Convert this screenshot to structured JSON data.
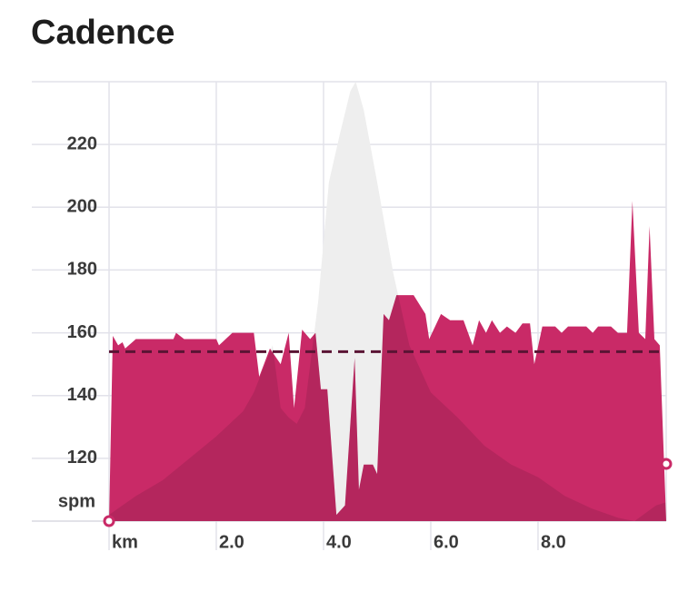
{
  "chart_data": {
    "type": "area",
    "title": "Cadence",
    "y_unit": "spm",
    "ylim": [
      100,
      240
    ],
    "yticks": [
      120,
      140,
      160,
      180,
      200,
      220
    ],
    "xlim": [
      0,
      10.39
    ],
    "xticks": [
      {
        "value": 0,
        "label": "km"
      },
      {
        "value": 2,
        "label": "2.0"
      },
      {
        "value": 4,
        "label": "4.0"
      },
      {
        "value": 6,
        "label": "6.0"
      },
      {
        "value": 8,
        "label": "8.0"
      }
    ],
    "grid": true,
    "average": 154,
    "average_color": "#5a1434",
    "series": [
      {
        "color": "#eeeeee",
        "x": [
          0,
          0.5,
          1.0,
          1.5,
          2.0,
          2.5,
          2.7,
          3.05,
          3.2,
          3.35,
          3.5,
          3.65,
          3.9,
          4.1,
          4.3,
          4.5,
          4.6,
          4.75,
          5.0,
          5.3,
          5.6,
          6.0,
          6.5,
          7.0,
          7.5,
          8.0,
          8.5,
          9.0,
          9.5,
          9.8,
          10.2,
          10.39
        ],
        "values": [
          102,
          108,
          113,
          120,
          127,
          135,
          141,
          156,
          136,
          133,
          131,
          136,
          170,
          208,
          223,
          237,
          240,
          231,
          208,
          179,
          156,
          141,
          133,
          124,
          118,
          114,
          108,
          104,
          101,
          100,
          105,
          106
        ]
      },
      {
        "color": "#c92a67",
        "x": [
          0,
          0.07,
          0.17,
          0.25,
          0.3,
          0.5,
          1.2,
          1.25,
          1.4,
          2.0,
          2.05,
          2.3,
          2.7,
          2.8,
          3.0,
          3.2,
          3.35,
          3.45,
          3.6,
          3.75,
          3.85,
          3.95,
          4.07,
          4.24,
          4.4,
          4.58,
          4.66,
          4.75,
          4.92,
          5.0,
          5.12,
          5.22,
          5.36,
          5.68,
          5.9,
          5.97,
          6.19,
          6.36,
          6.61,
          6.78,
          6.9,
          7.03,
          7.14,
          7.29,
          7.42,
          7.58,
          7.71,
          7.85,
          7.93,
          8.08,
          8.32,
          8.44,
          8.56,
          8.9,
          9.02,
          9.12,
          9.36,
          9.49,
          9.66,
          9.76,
          9.88,
          10.0,
          10.08,
          10.17,
          10.27,
          10.39
        ],
        "values": [
          100,
          159,
          156,
          157,
          155,
          158,
          158,
          160,
          158,
          158,
          156,
          160,
          160,
          146,
          155,
          150,
          160,
          136,
          161,
          158,
          160,
          142,
          142,
          102,
          105,
          152,
          110,
          118,
          118,
          115,
          166,
          164,
          172,
          172,
          166,
          158,
          166,
          164,
          164,
          156,
          164,
          160,
          164,
          160,
          162,
          160,
          163,
          163,
          150,
          162,
          162,
          160,
          162,
          162,
          160,
          162,
          162,
          160,
          160,
          202,
          160,
          158,
          194,
          158,
          156,
          100
        ]
      }
    ]
  }
}
